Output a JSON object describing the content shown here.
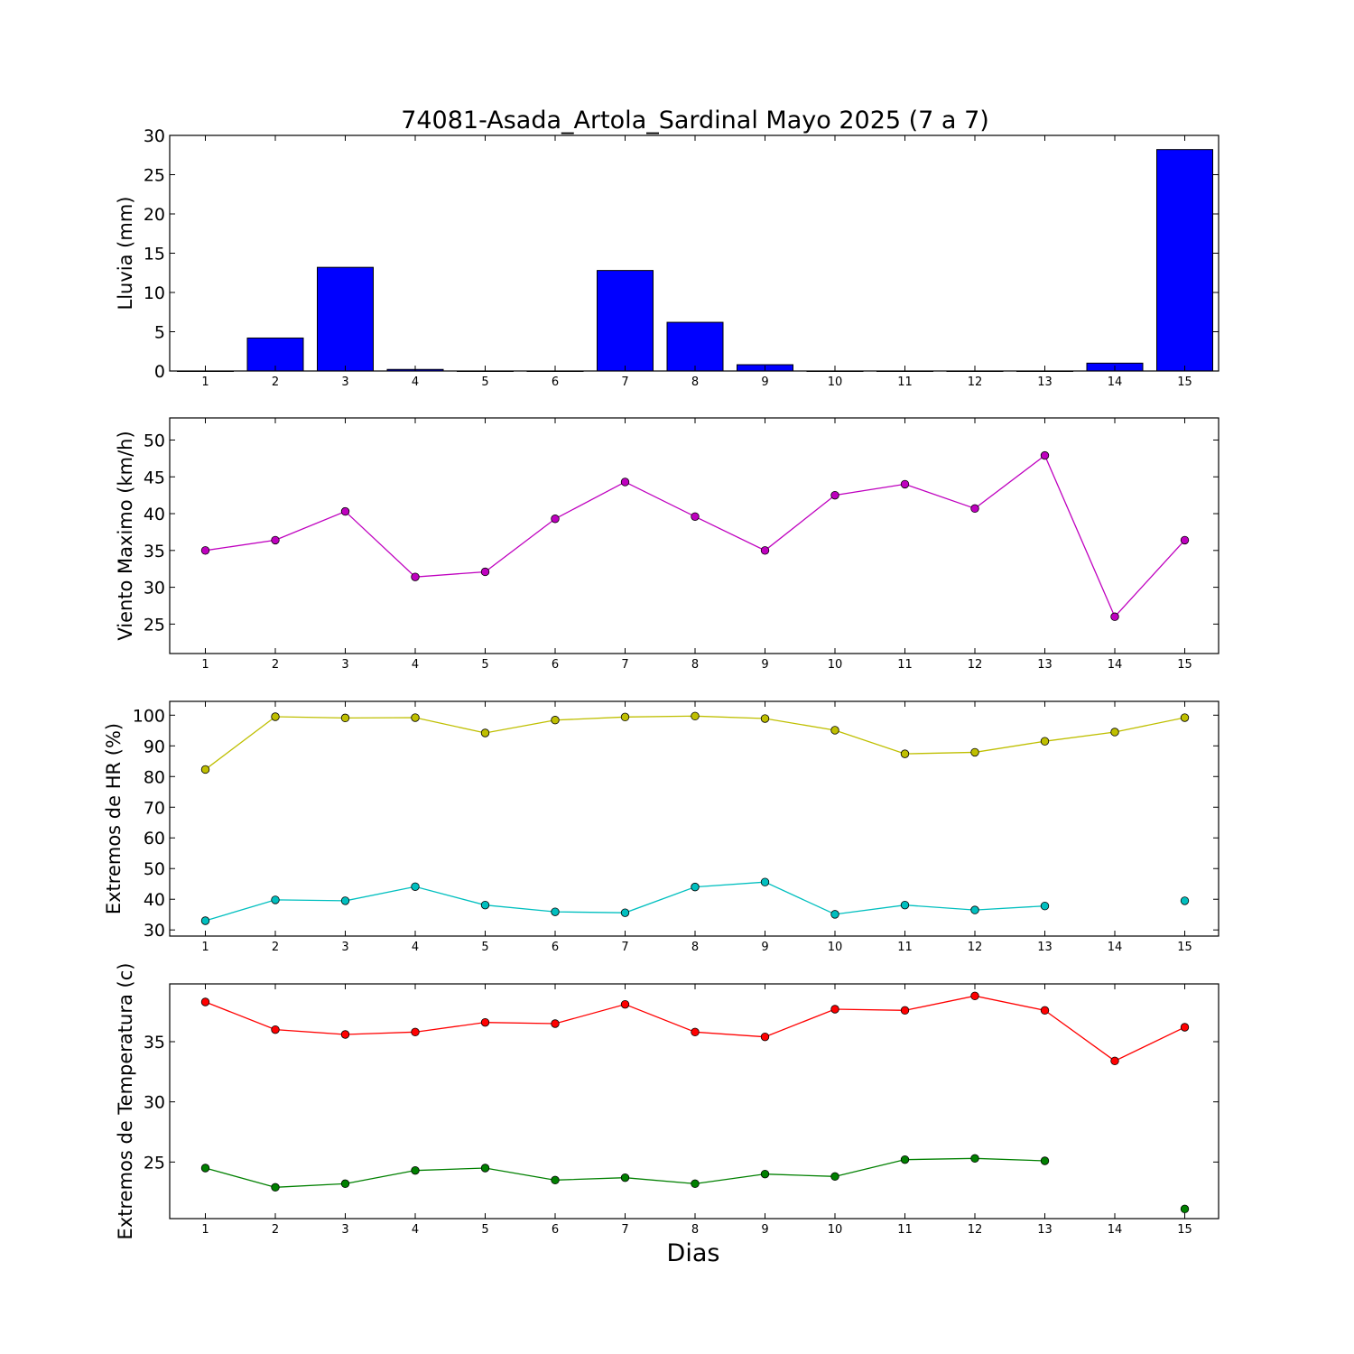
{
  "title": "74081-Asada_Artola_Sardinal Mayo 2025  (7 a 7)",
  "xlabel": "Dias",
  "days": [
    1,
    2,
    3,
    4,
    5,
    6,
    7,
    8,
    9,
    10,
    11,
    12,
    13,
    14,
    15
  ],
  "chart_data": [
    {
      "type": "bar",
      "ylabel": "Lluvia (mm)",
      "ylim": [
        0,
        30
      ],
      "yticks": [
        0,
        5,
        10,
        15,
        20,
        25,
        30
      ],
      "x": [
        1,
        2,
        3,
        4,
        5,
        6,
        7,
        8,
        9,
        10,
        11,
        12,
        13,
        14,
        15
      ],
      "values": [
        0,
        4.2,
        13.2,
        0.2,
        0,
        0,
        12.8,
        6.2,
        0.8,
        0,
        0,
        0,
        0,
        1.0,
        28.2
      ],
      "color": "#0000ff"
    },
    {
      "type": "line",
      "ylabel": "Viento Maximo (km/h)",
      "ylim": [
        21,
        53
      ],
      "yticks": [
        25,
        30,
        35,
        40,
        45,
        50
      ],
      "x": [
        1,
        2,
        3,
        4,
        5,
        6,
        7,
        8,
        9,
        10,
        11,
        12,
        13,
        14,
        15
      ],
      "series": [
        {
          "values": [
            35.0,
            36.4,
            40.3,
            31.4,
            32.1,
            39.3,
            44.3,
            39.6,
            35.0,
            42.5,
            44.0,
            40.7,
            47.9,
            26.0,
            36.4
          ],
          "color": "#bf00bf"
        }
      ]
    },
    {
      "type": "line",
      "ylabel": "Extremos de HR (%)",
      "ylim": [
        28,
        104.5
      ],
      "yticks": [
        30,
        40,
        50,
        60,
        70,
        80,
        90,
        100
      ],
      "x": [
        1,
        2,
        3,
        4,
        5,
        6,
        7,
        8,
        9,
        10,
        11,
        12,
        13,
        14,
        15
      ],
      "series": [
        {
          "values": [
            82.3,
            99.5,
            99.1,
            99.2,
            94.2,
            98.4,
            99.4,
            99.7,
            98.9,
            95.1,
            87.4,
            87.9,
            91.5,
            94.5,
            99.2
          ],
          "color": "#bfbf00"
        },
        {
          "values": [
            33.0,
            39.8,
            39.5,
            44.1,
            38.1,
            35.9,
            35.6,
            44.0,
            45.6,
            35.1,
            38.1,
            36.5,
            37.8,
            null,
            39.5
          ],
          "color": "#00bfbf"
        }
      ]
    },
    {
      "type": "line",
      "ylabel": "Extremos de Temperatura (c)",
      "ylim": [
        20.3,
        39.8
      ],
      "yticks": [
        25,
        30,
        35
      ],
      "x": [
        1,
        2,
        3,
        4,
        5,
        6,
        7,
        8,
        9,
        10,
        11,
        12,
        13,
        14,
        15
      ],
      "series": [
        {
          "values": [
            38.3,
            36.0,
            35.6,
            35.8,
            36.6,
            36.5,
            38.1,
            35.8,
            35.4,
            37.7,
            37.6,
            38.8,
            37.6,
            33.4,
            36.2
          ],
          "color": "#ff0000"
        },
        {
          "values": [
            24.5,
            22.9,
            23.2,
            24.3,
            24.5,
            23.5,
            23.7,
            23.2,
            24.0,
            23.8,
            25.2,
            25.3,
            25.1,
            null,
            21.1
          ],
          "color": "#008000"
        }
      ]
    }
  ]
}
